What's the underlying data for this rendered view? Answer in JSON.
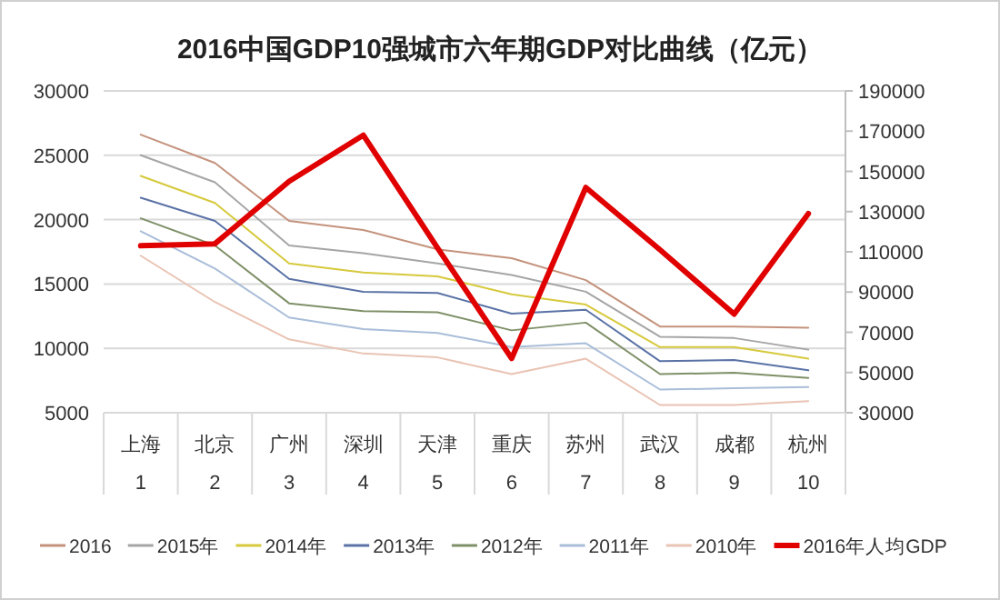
{
  "chart_data": {
    "type": "line",
    "title": "2016中国GDP10强城市六年期GDP对比曲线（亿元）",
    "categories": [
      "上海\n1",
      "北京\n2",
      "广州\n3",
      "深圳\n4",
      "天津\n5",
      "重庆\n6",
      "苏州\n7",
      "武汉\n8",
      "成都\n9",
      "杭州\n10"
    ],
    "series": [
      {
        "name": "2016",
        "color": "#c4927c",
        "values": [
          26600,
          24400,
          19900,
          19200,
          17700,
          17000,
          15300,
          11700,
          11700,
          11600
        ]
      },
      {
        "name": "2015年",
        "color": "#a5a5a5",
        "values": [
          25000,
          22900,
          18000,
          17400,
          16600,
          15700,
          14400,
          10900,
          10800,
          9900
        ]
      },
      {
        "name": "2014年",
        "color": "#d6c93c",
        "values": [
          23400,
          21300,
          16600,
          15900,
          15600,
          14200,
          13400,
          10100,
          10100,
          9200
        ]
      },
      {
        "name": "2013年",
        "color": "#5a72a6",
        "values": [
          21700,
          19900,
          15400,
          14400,
          14300,
          12700,
          13000,
          9000,
          9100,
          8300
        ]
      },
      {
        "name": "2012年",
        "color": "#7f9068",
        "values": [
          20100,
          18000,
          13500,
          12900,
          12800,
          11400,
          12000,
          8000,
          8100,
          7700
        ]
      },
      {
        "name": "2011年",
        "color": "#a9bdd9",
        "values": [
          19100,
          16200,
          12400,
          11500,
          11200,
          10100,
          10400,
          6800,
          6900,
          7000
        ]
      },
      {
        "name": "2010年",
        "color": "#e9c3b3",
        "values": [
          17200,
          13600,
          10700,
          9600,
          9300,
          8000,
          9200,
          5600,
          5600,
          5900
        ]
      },
      {
        "name": "2016年人均GDP",
        "color": "#e00000",
        "axis": "y2",
        "values": [
          113000,
          114000,
          145000,
          168000,
          112000,
          57000,
          142000,
          111000,
          79000,
          129000
        ]
      }
    ],
    "ylim": [
      5000,
      30000
    ],
    "yticks": [
      5000,
      10000,
      15000,
      20000,
      25000,
      30000
    ],
    "y2lim": [
      30000,
      190000
    ],
    "y2ticks": [
      30000,
      50000,
      70000,
      90000,
      110000,
      130000,
      150000,
      170000,
      190000
    ],
    "grid": "y",
    "legend": "bottom"
  }
}
